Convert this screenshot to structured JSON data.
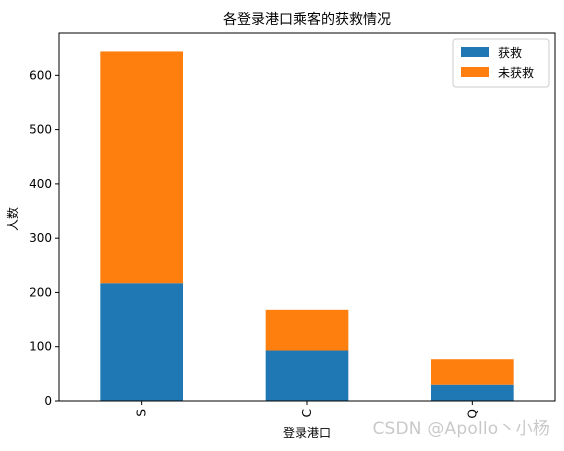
{
  "chart_data": {
    "type": "bar",
    "stacked": true,
    "title": "各登录港口乘客的获救情况",
    "xlabel": "登录港口",
    "ylabel": "人数",
    "categories": [
      "S",
      "C",
      "Q"
    ],
    "series": [
      {
        "name": "获救",
        "values": [
          217,
          93,
          30
        ],
        "color": "#1f77b4"
      },
      {
        "name": "未获救",
        "values": [
          427,
          75,
          47
        ],
        "color": "#ff7f0e"
      }
    ],
    "ylim": [
      0,
      678
    ],
    "yticks": [
      0,
      100,
      200,
      300,
      400,
      500,
      600
    ],
    "grid": false,
    "legend_position": "top-right"
  },
  "watermark": "CSDN @Apollo丶小杨"
}
